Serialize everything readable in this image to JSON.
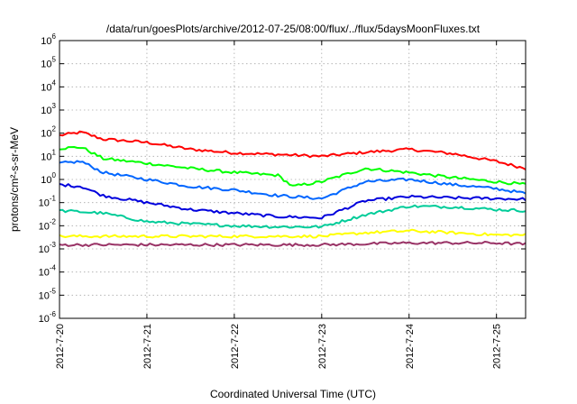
{
  "chart_data": {
    "type": "line",
    "title": "/data/run/goesPlots/archive/2012-07-25/08:00/flux/../flux/5daysMoonFluxes.txt",
    "xlabel": "Coordinated Universal Time (UTC)",
    "ylabel": "protons/cm²-s-sr-MeV",
    "y_scale": "log",
    "ylim": [
      1e-06,
      1000000.0
    ],
    "xlim": [
      "2012-07-20 00:00",
      "2012-07-25 08:00"
    ],
    "grid": true,
    "x_ticks": [
      "2012-7-20",
      "2012-7-21",
      "2012-7-22",
      "2012-7-23",
      "2012-7-24",
      "2012-7-25"
    ],
    "y_ticks": [
      {
        "base": "10",
        "exp": "6"
      },
      {
        "base": "10",
        "exp": "5"
      },
      {
        "base": "10",
        "exp": "4"
      },
      {
        "base": "10",
        "exp": "3"
      },
      {
        "base": "10",
        "exp": "2"
      },
      {
        "base": "10",
        "exp": "1"
      },
      {
        "base": "10",
        "exp": "0"
      },
      {
        "base": "10",
        "exp": "-1"
      },
      {
        "base": "10",
        "exp": "-2"
      },
      {
        "base": "10",
        "exp": "-3"
      },
      {
        "base": "10",
        "exp": "-4"
      },
      {
        "base": "10",
        "exp": "-5"
      },
      {
        "base": "10",
        "exp": "-6"
      }
    ],
    "series": [
      {
        "color": "#ff0000",
        "x": [
          "2012-07-20 00:00",
          "2012-07-20 06:00",
          "2012-07-20 12:00",
          "2012-07-21 00:00",
          "2012-07-21 12:00",
          "2012-07-22 00:00",
          "2012-07-22 12:00",
          "2012-07-23 00:00",
          "2012-07-23 12:00",
          "2012-07-24 00:00",
          "2012-07-24 12:00",
          "2012-07-25 00:00",
          "2012-07-25 08:00"
        ],
        "values": [
          80,
          110,
          55,
          40,
          20,
          14,
          12,
          10,
          15,
          20,
          13,
          6,
          3
        ]
      },
      {
        "color": "#00ff00",
        "x": [
          "2012-07-20 00:00",
          "2012-07-20 06:00",
          "2012-07-20 12:00",
          "2012-07-21 00:00",
          "2012-07-21 12:00",
          "2012-07-22 00:00",
          "2012-07-22 12:00",
          "2012-07-22 16:00",
          "2012-07-23 00:00",
          "2012-07-23 12:00",
          "2012-07-24 00:00",
          "2012-07-24 12:00",
          "2012-07-25 00:00",
          "2012-07-25 08:00"
        ],
        "values": [
          22,
          25,
          8,
          5,
          3,
          2,
          1.5,
          0.5,
          0.8,
          3,
          2,
          1.2,
          0.8,
          0.6
        ]
      },
      {
        "color": "#0066ff",
        "x": [
          "2012-07-20 00:00",
          "2012-07-20 06:00",
          "2012-07-20 12:00",
          "2012-07-21 00:00",
          "2012-07-21 12:00",
          "2012-07-22 00:00",
          "2012-07-22 12:00",
          "2012-07-23 00:00",
          "2012-07-23 12:00",
          "2012-07-24 00:00",
          "2012-07-24 12:00",
          "2012-07-25 00:00",
          "2012-07-25 08:00"
        ],
        "values": [
          5,
          6,
          2,
          1,
          0.5,
          0.35,
          0.2,
          0.15,
          0.8,
          1,
          0.6,
          0.4,
          0.25
        ]
      },
      {
        "color": "#0000dd",
        "x": [
          "2012-07-20 00:00",
          "2012-07-20 06:00",
          "2012-07-20 12:00",
          "2012-07-21 00:00",
          "2012-07-21 12:00",
          "2012-07-22 00:00",
          "2012-07-22 12:00",
          "2012-07-23 00:00",
          "2012-07-23 12:00",
          "2012-07-24 00:00",
          "2012-07-24 12:00",
          "2012-07-25 00:00",
          "2012-07-25 08:00"
        ],
        "values": [
          0.6,
          0.5,
          0.2,
          0.1,
          0.05,
          0.035,
          0.025,
          0.022,
          0.12,
          0.18,
          0.16,
          0.15,
          0.14
        ]
      },
      {
        "color": "#00cc99",
        "x": [
          "2012-07-20 00:00",
          "2012-07-20 12:00",
          "2012-07-21 00:00",
          "2012-07-21 12:00",
          "2012-07-22 00:00",
          "2012-07-22 12:00",
          "2012-07-23 00:00",
          "2012-07-23 12:00",
          "2012-07-24 00:00",
          "2012-07-24 12:00",
          "2012-07-25 00:00",
          "2012-07-25 08:00"
        ],
        "values": [
          0.045,
          0.035,
          0.015,
          0.012,
          0.01,
          0.009,
          0.009,
          0.03,
          0.07,
          0.065,
          0.05,
          0.045
        ]
      },
      {
        "color": "#ffff00",
        "x": [
          "2012-07-20 00:00",
          "2012-07-21 00:00",
          "2012-07-22 00:00",
          "2012-07-23 00:00",
          "2012-07-23 12:00",
          "2012-07-24 00:00",
          "2012-07-24 12:00",
          "2012-07-25 00:00",
          "2012-07-25 08:00"
        ],
        "values": [
          0.0035,
          0.0035,
          0.0035,
          0.0035,
          0.005,
          0.006,
          0.005,
          0.004,
          0.004
        ]
      },
      {
        "color": "#993366",
        "x": [
          "2012-07-20 00:00",
          "2012-07-21 00:00",
          "2012-07-22 00:00",
          "2012-07-23 00:00",
          "2012-07-24 00:00",
          "2012-07-25 00:00",
          "2012-07-25 08:00"
        ],
        "values": [
          0.0015,
          0.0015,
          0.0015,
          0.0015,
          0.0018,
          0.0018,
          0.0016
        ]
      }
    ]
  }
}
